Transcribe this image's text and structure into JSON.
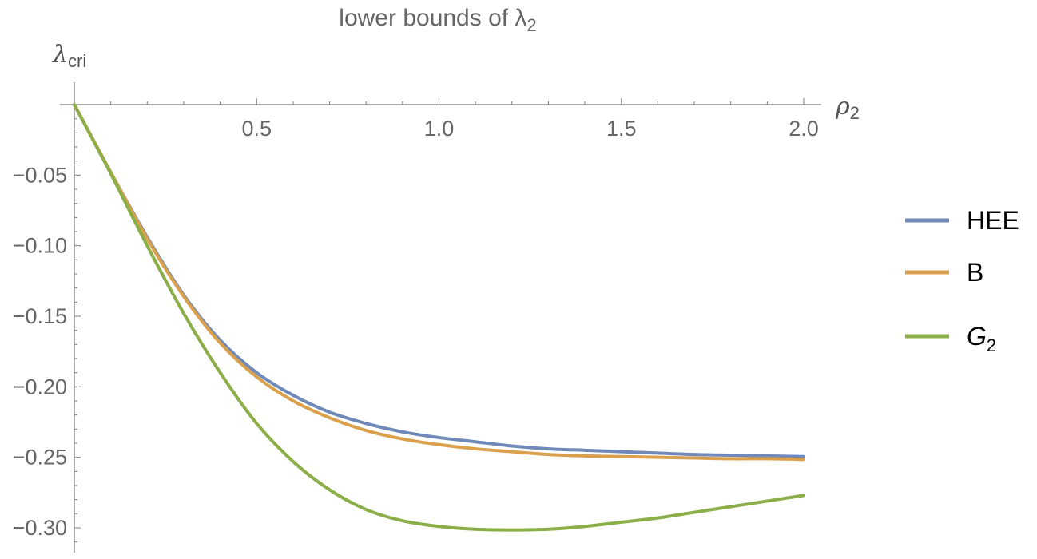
{
  "chart_data": {
    "type": "line",
    "title": "lower bounds of λ",
    "title_subscript": "2",
    "xlabel": "ρ",
    "xlabel_subscript": "2",
    "ylabel": "λ",
    "ylabel_subscript": "cri",
    "xlim": [
      0,
      2.0
    ],
    "ylim": [
      -0.318,
      0.02
    ],
    "xticks": [
      0.5,
      1.0,
      1.5,
      2.0
    ],
    "xtick_labels": [
      "0.5",
      "1.0",
      "1.5",
      "2.0"
    ],
    "yticks": [
      -0.05,
      -0.1,
      -0.15,
      -0.2,
      -0.25,
      -0.3
    ],
    "ytick_labels": [
      "−0.05",
      "−0.10",
      "−0.15",
      "−0.20",
      "−0.25",
      "−0.30"
    ],
    "grid": false,
    "legend_position": "right",
    "series": [
      {
        "name": "HEE",
        "name_subscript": "",
        "name_italic": false,
        "color": "#6f8ab8",
        "x": [
          0,
          0.1,
          0.2,
          0.3,
          0.4,
          0.5,
          0.6,
          0.7,
          0.8,
          0.9,
          1.0,
          1.1,
          1.2,
          1.3,
          1.4,
          1.5,
          1.6,
          1.7,
          1.8,
          1.9,
          2.0
        ],
        "y": [
          0,
          -0.048,
          -0.094,
          -0.135,
          -0.167,
          -0.19,
          -0.206,
          -0.218,
          -0.226,
          -0.232,
          -0.236,
          -0.239,
          -0.242,
          -0.244,
          -0.245,
          -0.246,
          -0.247,
          -0.248,
          -0.2485,
          -0.249,
          -0.2495
        ]
      },
      {
        "name": "B",
        "name_subscript": "",
        "name_italic": false,
        "color": "#dba04b",
        "x": [
          0,
          0.1,
          0.2,
          0.3,
          0.4,
          0.5,
          0.6,
          0.7,
          0.8,
          0.9,
          1.0,
          1.1,
          1.2,
          1.3,
          1.4,
          1.5,
          1.6,
          1.7,
          1.8,
          1.9,
          2.0
        ],
        "y": [
          0,
          -0.048,
          -0.095,
          -0.136,
          -0.169,
          -0.193,
          -0.21,
          -0.222,
          -0.231,
          -0.237,
          -0.241,
          -0.244,
          -0.246,
          -0.248,
          -0.249,
          -0.2495,
          -0.25,
          -0.2505,
          -0.251,
          -0.251,
          -0.2515
        ]
      },
      {
        "name": "G",
        "name_subscript": "2",
        "name_italic": true,
        "color": "#8cae48",
        "x": [
          0,
          0.1,
          0.2,
          0.3,
          0.4,
          0.5,
          0.6,
          0.7,
          0.8,
          0.9,
          1.0,
          1.1,
          1.2,
          1.3,
          1.4,
          1.5,
          1.6,
          1.7,
          1.8,
          1.9,
          2.0
        ],
        "y": [
          0,
          -0.049,
          -0.1,
          -0.148,
          -0.19,
          -0.226,
          -0.253,
          -0.273,
          -0.287,
          -0.295,
          -0.299,
          -0.301,
          -0.3015,
          -0.301,
          -0.299,
          -0.296,
          -0.293,
          -0.289,
          -0.285,
          -0.281,
          -0.277
        ]
      }
    ]
  }
}
